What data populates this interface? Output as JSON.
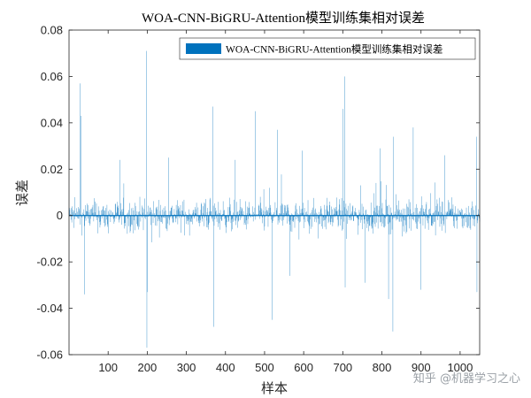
{
  "chart_data": {
    "type": "bar",
    "title": "WOA-CNN-BiGRU-Attention模型训练集相对误差",
    "xlabel": "样本",
    "ylabel": "误差",
    "legend": [
      "WOA-CNN-BiGRU-Attention模型训练集相对误差"
    ],
    "legend_position": "top-right",
    "grid": false,
    "xlim": [
      0,
      1050
    ],
    "ylim": [
      -0.06,
      0.08
    ],
    "xticks": [
      100,
      200,
      300,
      400,
      500,
      600,
      700,
      800,
      900,
      1000
    ],
    "xtick_labels": [
      "100",
      "200",
      "300",
      "400",
      "500",
      "600",
      "700",
      "800",
      "900",
      "1000"
    ],
    "yticks": [
      -0.06,
      -0.04,
      -0.02,
      0,
      0.02,
      0.04,
      0.06,
      0.08
    ],
    "ytick_labels": [
      "-0.06",
      "-0.04",
      "-0.02",
      "0",
      "0.02",
      "0.04",
      "0.06",
      "0.08"
    ],
    "series_color": "#0072BD",
    "n_samples": 1050,
    "peaks": [
      {
        "x": 28,
        "y": 0.057
      },
      {
        "x": 30,
        "y": 0.043
      },
      {
        "x": 40,
        "y": -0.034
      },
      {
        "x": 130,
        "y": 0.024
      },
      {
        "x": 198,
        "y": 0.071
      },
      {
        "x": 199,
        "y": -0.057
      },
      {
        "x": 200,
        "y": -0.033
      },
      {
        "x": 255,
        "y": 0.025
      },
      {
        "x": 367,
        "y": 0.047
      },
      {
        "x": 370,
        "y": -0.048
      },
      {
        "x": 425,
        "y": 0.024
      },
      {
        "x": 476,
        "y": 0.045
      },
      {
        "x": 519,
        "y": -0.045
      },
      {
        "x": 533,
        "y": 0.037
      },
      {
        "x": 565,
        "y": -0.026
      },
      {
        "x": 596,
        "y": 0.028
      },
      {
        "x": 700,
        "y": 0.046
      },
      {
        "x": 705,
        "y": 0.06
      },
      {
        "x": 706,
        "y": -0.031
      },
      {
        "x": 757,
        "y": -0.029
      },
      {
        "x": 795,
        "y": 0.029
      },
      {
        "x": 817,
        "y": -0.036
      },
      {
        "x": 828,
        "y": -0.05
      },
      {
        "x": 830,
        "y": 0.034
      },
      {
        "x": 880,
        "y": 0.038
      },
      {
        "x": 900,
        "y": -0.032
      },
      {
        "x": 960,
        "y": 0.026
      },
      {
        "x": 1042,
        "y": 0.034
      },
      {
        "x": 1043,
        "y": -0.033
      }
    ]
  },
  "watermark": "知乎 @机器学习之心"
}
